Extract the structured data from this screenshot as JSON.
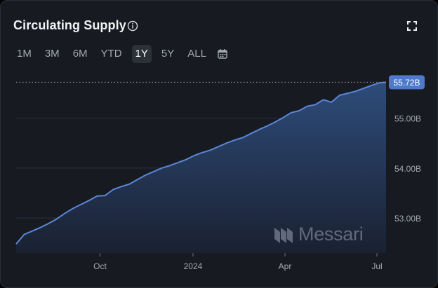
{
  "header": {
    "title": "Circulating Supply"
  },
  "icons": {
    "info": "info-circle-icon",
    "expand": "fullscreen-expand-icon",
    "calendar": "calendar-icon"
  },
  "ranges": [
    {
      "label": "1M",
      "active": false
    },
    {
      "label": "3M",
      "active": false
    },
    {
      "label": "6M",
      "active": false
    },
    {
      "label": "YTD",
      "active": false
    },
    {
      "label": "1Y",
      "active": true
    },
    {
      "label": "5Y",
      "active": false
    },
    {
      "label": "ALL",
      "active": false
    }
  ],
  "watermark": {
    "text": "Messari"
  },
  "colors": {
    "line": "#5b86d6",
    "area_top": "#2f4f7f",
    "area_bottom": "#1a2233",
    "grid": "#2c3140",
    "badge": "#4e7ac9",
    "axis_text": "#a3a8b1"
  },
  "chart_data": {
    "type": "area",
    "title": "Circulating Supply",
    "x": [
      "2023-07-10",
      "2023-07-18",
      "2023-07-26",
      "2023-08-03",
      "2023-08-11",
      "2023-08-19",
      "2023-08-27",
      "2023-09-04",
      "2023-09-12",
      "2023-09-20",
      "2023-09-28",
      "2023-10-06",
      "2023-10-14",
      "2023-10-22",
      "2023-10-30",
      "2023-11-07",
      "2023-11-15",
      "2023-11-23",
      "2023-12-01",
      "2023-12-09",
      "2023-12-17",
      "2023-12-25",
      "2024-01-02",
      "2024-01-10",
      "2024-01-18",
      "2024-01-26",
      "2024-02-03",
      "2024-02-11",
      "2024-02-19",
      "2024-02-27",
      "2024-03-06",
      "2024-03-14",
      "2024-03-22",
      "2024-03-30",
      "2024-04-07",
      "2024-04-15",
      "2024-04-23",
      "2024-05-01",
      "2024-05-09",
      "2024-05-17",
      "2024-05-25",
      "2024-06-02",
      "2024-06-10",
      "2024-06-18",
      "2024-06-26",
      "2024-07-04",
      "2024-07-10"
    ],
    "series": [
      {
        "values": [
          52.48,
          52.67,
          52.74,
          52.81,
          52.89,
          52.98,
          53.09,
          53.19,
          53.27,
          53.35,
          53.44,
          53.45,
          53.57,
          53.63,
          53.68,
          53.77,
          53.86,
          53.93,
          54.0,
          54.05,
          54.11,
          54.17,
          54.25,
          54.31,
          54.36,
          54.43,
          54.5,
          54.56,
          54.61,
          54.69,
          54.77,
          54.84,
          54.92,
          55.01,
          55.11,
          55.15,
          55.24,
          55.27,
          55.37,
          55.32,
          55.46,
          55.5,
          55.54,
          55.6,
          55.66,
          55.71,
          55.72
        ]
      }
    ],
    "x_ticks": [
      {
        "x": "2023-10-01",
        "label": "Oct"
      },
      {
        "x": "2024-01-01",
        "label": "2024"
      },
      {
        "x": "2024-04-01",
        "label": "Apr"
      },
      {
        "x": "2024-07-01",
        "label": "Jul"
      }
    ],
    "y_ticks": [
      53.0,
      54.0,
      55.0
    ],
    "y_tick_labels": [
      "53.00B",
      "54.00B",
      "55.00B"
    ],
    "ylim": [
      52.3,
      55.95
    ],
    "last_value_label": "55.72B",
    "grid": true,
    "legend": "none"
  }
}
